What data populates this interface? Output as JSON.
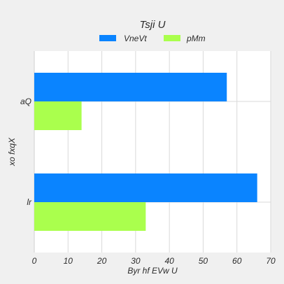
{
  "chart_data": {
    "type": "bar",
    "orientation": "horizontal",
    "title": "Tsji U",
    "xlabel": "Byr hf EVw U",
    "ylabel": "xo fxqX",
    "categories": [
      "aQ",
      "lr"
    ],
    "series": [
      {
        "name": "VneVt",
        "values": [
          57,
          66
        ],
        "color": "#0a84ff"
      },
      {
        "name": "pMm",
        "values": [
          14,
          33
        ],
        "color": "#aaff4d"
      }
    ],
    "xlim": [
      0,
      70
    ],
    "xticks": [
      0,
      10,
      20,
      30,
      40,
      50,
      60,
      70
    ],
    "grid": true,
    "legend_position": "top-center",
    "background": "#f0f0f0",
    "plot_background": "#ffffff"
  }
}
